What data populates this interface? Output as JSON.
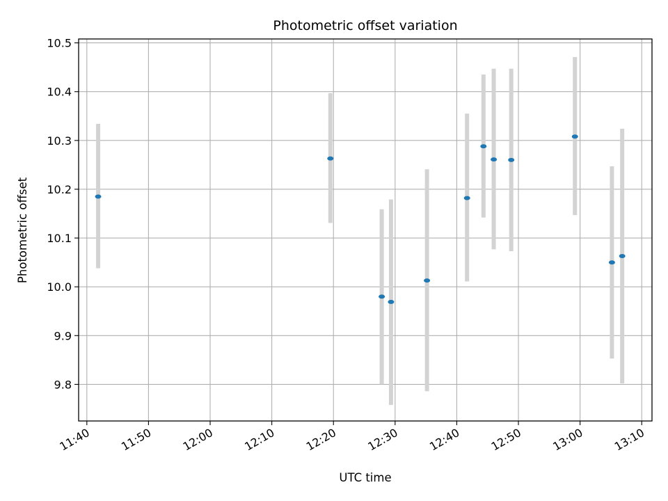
{
  "chart_data": {
    "type": "scatter",
    "title": "Photometric offset variation",
    "xlabel": "UTC time",
    "ylabel": "Photometric offset",
    "x_ticks": [
      "11:40",
      "11:50",
      "12:00",
      "12:10",
      "12:20",
      "12:30",
      "12:40",
      "12:50",
      "13:00",
      "13:10"
    ],
    "y_ticks": [
      "9.8",
      "9.9",
      "10.0",
      "10.1",
      "10.2",
      "10.3",
      "10.4",
      "10.5"
    ],
    "xlim": [
      "11:38:40",
      "13:11:40"
    ],
    "ylim": [
      9.725,
      10.508
    ],
    "grid": true,
    "marker_color": "#1f77b4",
    "errorbar_color": "#d3d3d3",
    "series": [
      {
        "points": [
          {
            "x": "11:41:50",
            "y": 10.185,
            "ylow": 10.038,
            "yhigh": 10.334
          },
          {
            "x": "12:19:30",
            "y": 10.263,
            "ylow": 10.131,
            "yhigh": 10.397
          },
          {
            "x": "12:27:50",
            "y": 9.98,
            "ylow": 9.8,
            "yhigh": 10.159
          },
          {
            "x": "12:29:20",
            "y": 9.969,
            "ylow": 9.758,
            "yhigh": 10.179
          },
          {
            "x": "12:35:10",
            "y": 10.013,
            "ylow": 9.786,
            "yhigh": 10.241
          },
          {
            "x": "12:41:40",
            "y": 10.182,
            "ylow": 10.011,
            "yhigh": 10.355
          },
          {
            "x": "12:44:20",
            "y": 10.288,
            "ylow": 10.142,
            "yhigh": 10.435
          },
          {
            "x": "12:46:00",
            "y": 10.261,
            "ylow": 10.077,
            "yhigh": 10.447
          },
          {
            "x": "12:48:50",
            "y": 10.26,
            "ylow": 10.073,
            "yhigh": 10.447
          },
          {
            "x": "12:59:10",
            "y": 10.308,
            "ylow": 10.147,
            "yhigh": 10.471
          },
          {
            "x": "13:05:10",
            "y": 10.05,
            "ylow": 9.853,
            "yhigh": 10.247
          },
          {
            "x": "13:06:50",
            "y": 10.063,
            "ylow": 9.802,
            "yhigh": 10.324
          }
        ]
      }
    ]
  }
}
